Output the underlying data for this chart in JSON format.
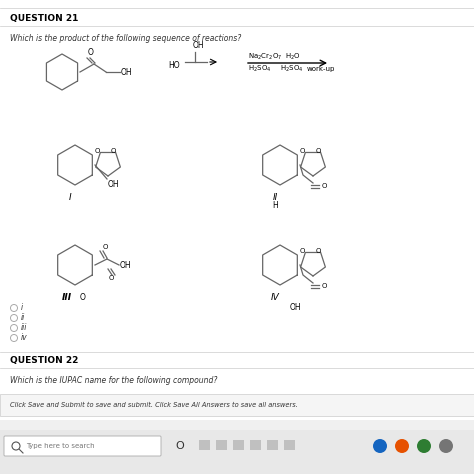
{
  "bg_color": "#f0f0f0",
  "page_bg": "#ffffff",
  "title1": "QUESTION 21",
  "q1_text": "Which is the product of the following sequence of reactions?",
  "label_I": "I",
  "label_II": "II",
  "label_III": "III",
  "label_IV": "IV",
  "label_H": "H",
  "radio_labels": [
    "i",
    "ii",
    "iii",
    "iv"
  ],
  "title2": "QUESTION 22",
  "q2_text": "Which is the IUPAC name for the following compound?",
  "footer": "Click Save and Submit to save and submit. Click Save All Answers to save all answers.",
  "taskbar_text": "Type here to search",
  "taskbar_bg": "#e8e8e8",
  "icon_colors": [
    "#1565c0",
    "#e65100",
    "#2e7d32",
    "#757575"
  ]
}
